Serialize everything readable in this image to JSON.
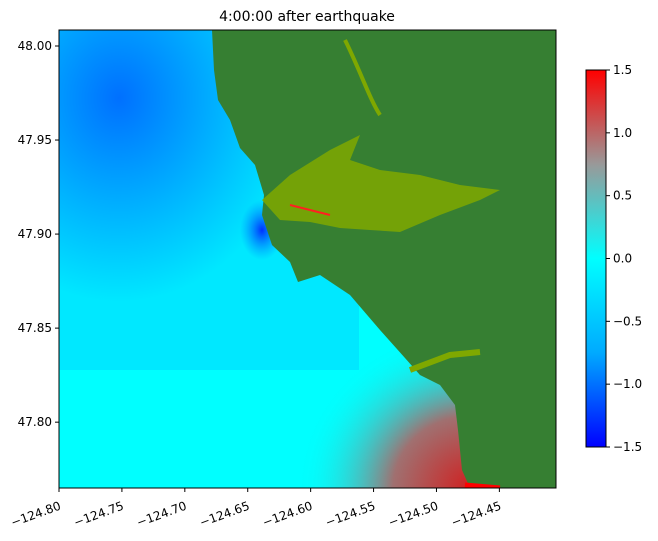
{
  "chart_data": {
    "type": "heatmap",
    "title": "4:00:00 after earthquake",
    "xlim": [
      -124.8,
      -124.405
    ],
    "ylim": [
      47.765,
      48.0085
    ],
    "xticks": [
      -124.8,
      -124.75,
      -124.7,
      -124.65,
      -124.6,
      -124.55,
      -124.5,
      -124.45
    ],
    "xtick_labels": [
      "−124.80",
      "−124.75",
      "−124.70",
      "−124.65",
      "−124.60",
      "−124.55",
      "−124.50",
      "−124.45"
    ],
    "yticks": [
      48.0,
      47.95,
      47.9,
      47.85,
      47.8
    ],
    "ytick_labels": [
      "48.00",
      "47.95",
      "47.90",
      "47.85",
      "47.80"
    ],
    "colorbar": {
      "range": [
        -1.5,
        1.5
      ],
      "ticks": [
        1.5,
        1.0,
        0.5,
        0.0,
        -0.5,
        -1.0,
        -1.5
      ],
      "tick_labels": [
        "1.5",
        "1.0",
        "0.5",
        "0.0",
        "−0.5",
        "−1.0",
        "−1.5"
      ],
      "colors": [
        "#0000ff",
        "#00aaff",
        "#00ffff",
        "#999999",
        "#ff0000"
      ]
    },
    "land_color": "#367f32",
    "wet_land_color": "#7fa800"
  }
}
